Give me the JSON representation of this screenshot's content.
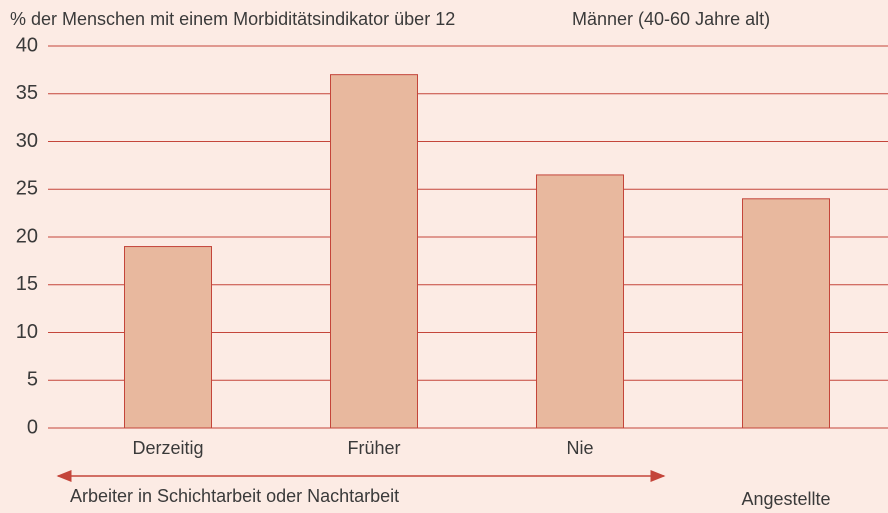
{
  "chart_data": {
    "type": "bar",
    "title": "% der Menschen mit einem Morbiditätsindikator über 12",
    "subtitle": "Männer (40-60 Jahre alt)",
    "categories": [
      "Derzeitig",
      "Früher",
      "Nie",
      "Angestellte"
    ],
    "values": [
      19,
      37,
      26.5,
      24
    ],
    "color": "#e8b89e",
    "ylim": [
      0,
      40
    ],
    "yticks": [
      0,
      5,
      10,
      15,
      20,
      25,
      30,
      35,
      40
    ],
    "grid": true,
    "annotations": [
      "Arbeiter in Schichtarbeit oder Nachtarbeit"
    ]
  }
}
